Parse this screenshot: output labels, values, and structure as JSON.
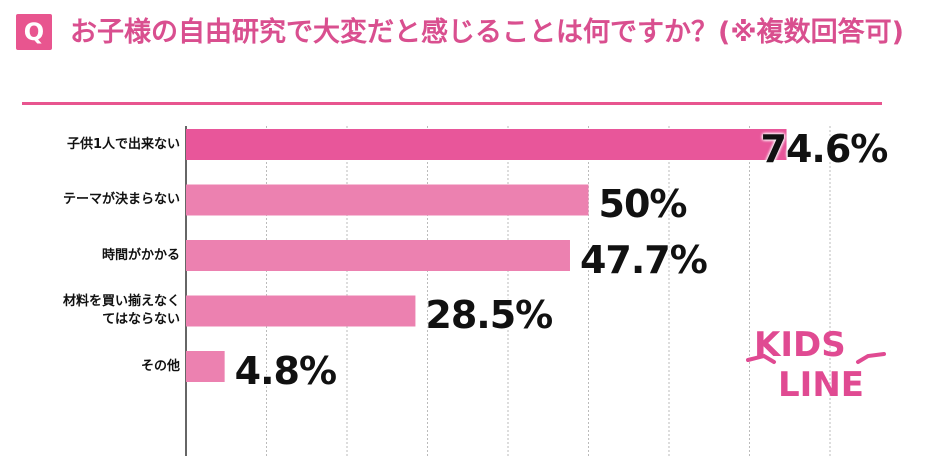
{
  "header": {
    "q_badge": "Q",
    "question": "お子様の自由研究で大変だと感じることは何ですか？(※複数回答可)"
  },
  "chart_data": {
    "type": "bar",
    "orientation": "horizontal",
    "categories": [
      "子供1人で出来ない",
      "テーマが決まらない",
      "時間がかかる",
      "材料を買い揃えなくてはならない",
      "その他"
    ],
    "category_lines": [
      [
        "子供1人で出来ない"
      ],
      [
        "テーマが決まらない"
      ],
      [
        "時間がかかる"
      ],
      [
        "材料を買い揃えなく",
        "てはならない"
      ],
      [
        "その他"
      ]
    ],
    "values": [
      74.6,
      50,
      47.7,
      28.5,
      4.8
    ],
    "value_labels": [
      "74.6%",
      "50%",
      "47.7%",
      "28.5%",
      "4.8%"
    ],
    "xlim": [
      0,
      80
    ],
    "grid": true,
    "colors": {
      "top_bar": "#e8569a",
      "bar": "#ec81b0",
      "grid": "#bbbbbb",
      "axis": "#333333"
    }
  },
  "logo": {
    "text_line1": "KIDS",
    "text_line2": "LINE",
    "color": "#e04a92"
  }
}
